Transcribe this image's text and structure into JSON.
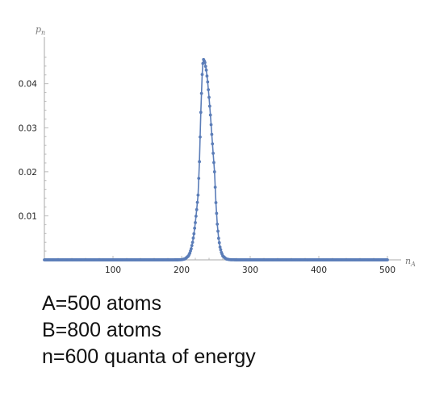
{
  "chart_data": {
    "type": "scatter",
    "xlabel": "n_A",
    "xlabel_base": "n",
    "xlabel_sub": "A",
    "ylabel": "p_n",
    "ylabel_base": "p",
    "ylabel_sub": "n",
    "xlim": [
      0,
      500
    ],
    "ylim": [
      0,
      0.046
    ],
    "x_ticks": [
      100,
      200,
      300,
      400,
      500
    ],
    "y_ticks": [
      0.01,
      0.02,
      0.03,
      0.04
    ],
    "x_tick_labels": [
      "100",
      "200",
      "300",
      "400",
      "500"
    ],
    "y_tick_labels": [
      "0.01",
      "0.02",
      "0.03",
      "0.04"
    ],
    "grid": false,
    "legend": "none",
    "series_color": "#5b7db8",
    "x": [
      0,
      30,
      60,
      90,
      120,
      150,
      180,
      195,
      200,
      205,
      210,
      212,
      214,
      216,
      218,
      220,
      222,
      224,
      226,
      228,
      230,
      231,
      232,
      233,
      234,
      236,
      238,
      240,
      242,
      244,
      246,
      248,
      250,
      252,
      254,
      256,
      258,
      260,
      265,
      270,
      280,
      300,
      330,
      360,
      390,
      420,
      450,
      480,
      500
    ],
    "values": [
      0,
      0,
      0,
      0,
      0,
      0,
      0,
      1e-05,
      4e-05,
      0.00022,
      0.00089,
      0.00153,
      0.00253,
      0.00398,
      0.00594,
      0.00845,
      0.0114,
      0.0147,
      0.0223,
      0.0335,
      0.0421,
      0.0446,
      0.0455,
      0.0452,
      0.0448,
      0.0431,
      0.0404,
      0.0369,
      0.0329,
      0.0285,
      0.0242,
      0.02,
      0.013,
      0.0081,
      0.0049,
      0.0029,
      0.0017,
      0.0009,
      0.0002,
      4e-05,
      0,
      0,
      0,
      0,
      0,
      0,
      0,
      0,
      0
    ]
  },
  "annotations": [
    "A=500 atoms",
    "B=800 atoms",
    "n=600 quanta of energy"
  ]
}
